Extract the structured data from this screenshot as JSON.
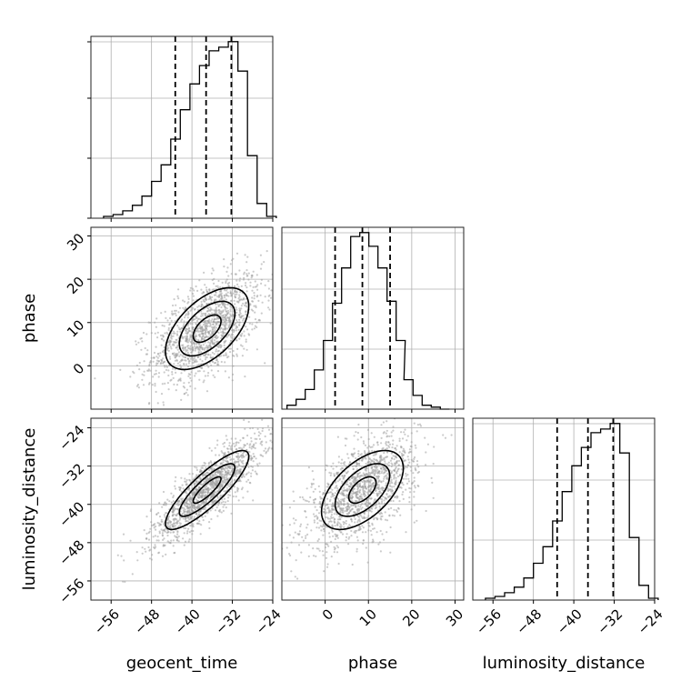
{
  "chart_data": {
    "type": "corner",
    "parameters": [
      "geocent_time",
      "phase",
      "luminosity_distance"
    ],
    "quantiles": {
      "geocent_time": [
        -43.3,
        -37.2,
        -32.2
      ],
      "phase": [
        2.3,
        8.6,
        15.0
      ],
      "luminosity_distance": [
        -43.3,
        -37.2,
        -32.2
      ]
    },
    "hist_1d": {
      "geocent_time": {
        "range": [
          -60,
          -24
        ],
        "bin_width": 1.9,
        "bin_starts": [
          -57.5,
          -55.6,
          -53.7,
          -51.8,
          -49.9,
          -48.0,
          -46.1,
          -44.2,
          -42.3,
          -40.4,
          -38.5,
          -36.6,
          -34.7,
          -32.8,
          -30.9,
          -29.0,
          -27.1,
          -25.2
        ],
        "counts": [
          1,
          2,
          4,
          7,
          12,
          20,
          29,
          43,
          59,
          73,
          83,
          91,
          93,
          96,
          80,
          34,
          8,
          1
        ]
      },
      "phase": {
        "range": [
          -10,
          32
        ],
        "bin_width": 2.1,
        "bin_starts": [
          -8.8,
          -6.7,
          -4.6,
          -2.5,
          -0.4,
          1.7,
          3.8,
          5.9,
          8.0,
          10.1,
          12.2,
          14.3,
          16.4,
          18.2,
          20.3,
          22.4,
          24.5,
          26.6
        ],
        "counts": [
          2,
          5,
          10,
          20,
          35,
          54,
          72,
          88,
          90,
          83,
          72,
          55,
          35,
          15,
          7,
          2,
          1,
          0
        ]
      },
      "luminosity_distance": {
        "range": [
          -60,
          -24
        ],
        "bin_width": 1.9,
        "bin_starts": [
          -57.5,
          -55.6,
          -53.7,
          -51.8,
          -49.9,
          -48.0,
          -46.1,
          -44.2,
          -42.3,
          -40.4,
          -38.5,
          -36.6,
          -34.7,
          -32.8,
          -30.9,
          -29.0,
          -27.1,
          -25.2
        ],
        "counts": [
          1,
          2,
          4,
          7,
          12,
          20,
          29,
          43,
          59,
          73,
          83,
          91,
          93,
          96,
          80,
          34,
          8,
          1
        ]
      }
    },
    "hist_2d": [
      {
        "x": "geocent_time",
        "y": "phase",
        "center": [
          -37,
          8.6
        ],
        "sd": [
          5.5,
          6.3
        ],
        "correlation": 0.55,
        "xlim": [
          -60,
          -24
        ],
        "ylim": [
          -10,
          32
        ]
      },
      {
        "x": "geocent_time",
        "y": "luminosity_distance",
        "center": [
          -37,
          -37
        ],
        "sd": [
          5.5,
          5.5
        ],
        "correlation": 0.85,
        "xlim": [
          -60,
          -24
        ],
        "ylim": [
          -60,
          -22
        ]
      },
      {
        "x": "phase",
        "y": "luminosity_distance",
        "center": [
          8.6,
          -37
        ],
        "sd": [
          6.3,
          5.5
        ],
        "correlation": 0.55,
        "xlim": [
          -10,
          32
        ],
        "ylim": [
          -60,
          -22
        ]
      }
    ],
    "ticks": {
      "geocent_time": [
        "−56",
        "−48",
        "−40",
        "−32",
        "−24"
      ],
      "geocent_time_values": [
        -56,
        -48,
        -40,
        -32,
        -24
      ],
      "phase": [
        "0",
        "10",
        "20",
        "30"
      ],
      "phase_values": [
        0,
        10,
        20,
        30
      ],
      "luminosity_distance": [
        "−56",
        "−48",
        "−40",
        "−32",
        "−24"
      ],
      "luminosity_distance_values": [
        -56,
        -48,
        -40,
        -32,
        -24
      ]
    },
    "xlabels": [
      "geocent_time",
      "phase",
      "luminosity_distance"
    ],
    "ylabels": [
      "phase",
      "luminosity_distance"
    ],
    "grid": true,
    "contour_levels": [
      0.5,
      1.0,
      1.5
    ],
    "colors": {
      "line": "#000000",
      "points": "#a0a0a0",
      "grid": "#b0b0b0"
    }
  }
}
